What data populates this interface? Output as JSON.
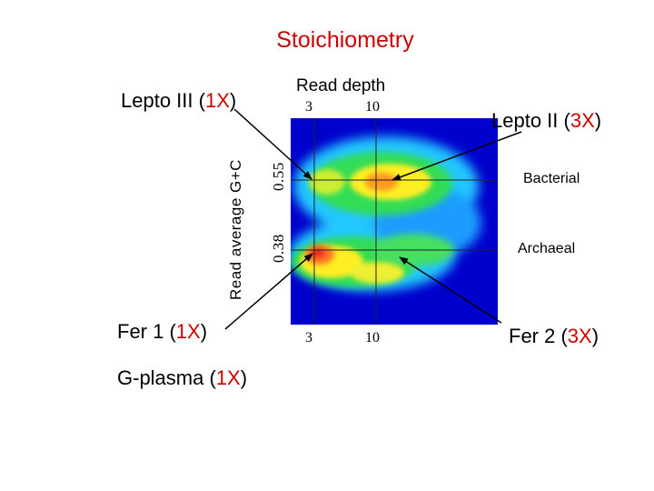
{
  "title": "Stoichiometry",
  "labels": {
    "lepto3_name": "Lepto III (",
    "lepto3_mult": "1X",
    "lepto2_name": "Lepto II (",
    "lepto2_mult": "3X",
    "fer1_name": "Fer 1 (",
    "fer1_mult": "1X",
    "fer2_name": "Fer 2 (",
    "fer2_mult": "3X",
    "gplasma_name": "G-plasma (",
    "gplasma_mult": "1X",
    "close_paren": ")",
    "bacterial": "Bacterial",
    "archaeal": "Archaeal"
  },
  "axes": {
    "x_title": "Read depth",
    "x_ticks_top": [
      "3",
      "10"
    ],
    "x_ticks_bottom": [
      "3",
      "10"
    ],
    "y_title": "Read average G+C",
    "y_ticks": [
      "0.55",
      "0.38"
    ]
  },
  "colors": {
    "title": "#cc0000",
    "multiplier": "#cc0000",
    "plot_background": "#0000cc",
    "arrow": "#000000"
  }
}
